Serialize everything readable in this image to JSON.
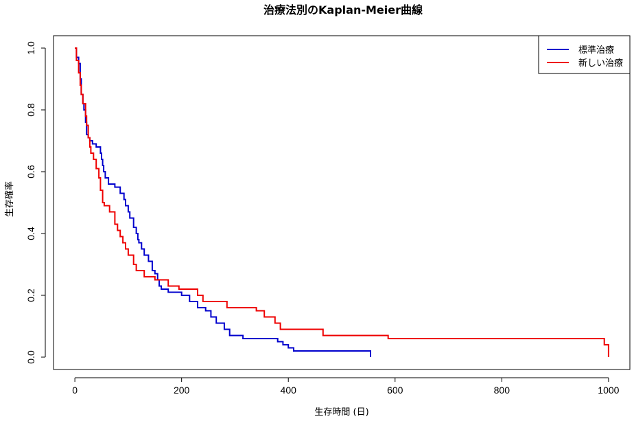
{
  "chart_data": {
    "type": "line",
    "title": "治療法別のKaplan-Meier曲線",
    "xlabel": "生存時間 (日)",
    "ylabel": "生存確率",
    "xlim": [
      -40,
      1040
    ],
    "ylim": [
      -0.04,
      1.04
    ],
    "x_ticks": [
      0,
      200,
      400,
      600,
      800,
      1000
    ],
    "y_ticks": [
      0.0,
      0.2,
      0.4,
      0.6,
      0.8,
      1.0
    ],
    "x_tick_labels": [
      "0",
      "200",
      "400",
      "600",
      "800",
      "1000"
    ],
    "y_tick_labels": [
      "0.0",
      "0.2",
      "0.4",
      "0.6",
      "0.8",
      "1.0"
    ],
    "grid": false,
    "legend_position": "top-right",
    "series": [
      {
        "name": "標準治療",
        "color": "#0000CD",
        "step": true,
        "x": [
          0,
          3,
          7,
          10,
          12,
          15,
          17,
          20,
          22,
          25,
          28,
          33,
          40,
          48,
          50,
          52,
          54,
          57,
          63,
          75,
          85,
          92,
          95,
          100,
          103,
          110,
          115,
          118,
          120,
          125,
          130,
          138,
          145,
          150,
          155,
          158,
          162,
          175,
          200,
          215,
          230,
          245,
          255,
          265,
          280,
          290,
          315,
          380,
          390,
          400,
          410,
          554
        ],
        "y": [
          1.0,
          0.97,
          0.95,
          0.9,
          0.85,
          0.82,
          0.8,
          0.76,
          0.72,
          0.71,
          0.7,
          0.69,
          0.68,
          0.66,
          0.64,
          0.62,
          0.6,
          0.58,
          0.56,
          0.55,
          0.53,
          0.51,
          0.49,
          0.47,
          0.45,
          0.42,
          0.4,
          0.38,
          0.37,
          0.35,
          0.33,
          0.31,
          0.28,
          0.27,
          0.25,
          0.23,
          0.22,
          0.21,
          0.2,
          0.18,
          0.16,
          0.15,
          0.13,
          0.11,
          0.09,
          0.07,
          0.06,
          0.05,
          0.04,
          0.03,
          0.02,
          0.0
        ]
      },
      {
        "name": "新しい治療",
        "color": "#EE0000",
        "step": true,
        "x": [
          0,
          3,
          7,
          10,
          12,
          15,
          20,
          22,
          25,
          28,
          30,
          35,
          40,
          45,
          48,
          52,
          55,
          65,
          75,
          80,
          85,
          90,
          95,
          100,
          110,
          115,
          130,
          150,
          175,
          195,
          230,
          240,
          285,
          340,
          355,
          375,
          385,
          465,
          587,
          992,
          1000
        ],
        "y": [
          1.0,
          0.96,
          0.92,
          0.88,
          0.85,
          0.82,
          0.78,
          0.75,
          0.71,
          0.68,
          0.66,
          0.64,
          0.61,
          0.58,
          0.54,
          0.5,
          0.49,
          0.47,
          0.43,
          0.41,
          0.39,
          0.37,
          0.35,
          0.33,
          0.3,
          0.28,
          0.26,
          0.25,
          0.23,
          0.22,
          0.2,
          0.18,
          0.16,
          0.15,
          0.13,
          0.11,
          0.09,
          0.07,
          0.06,
          0.04,
          0.0
        ]
      }
    ]
  }
}
